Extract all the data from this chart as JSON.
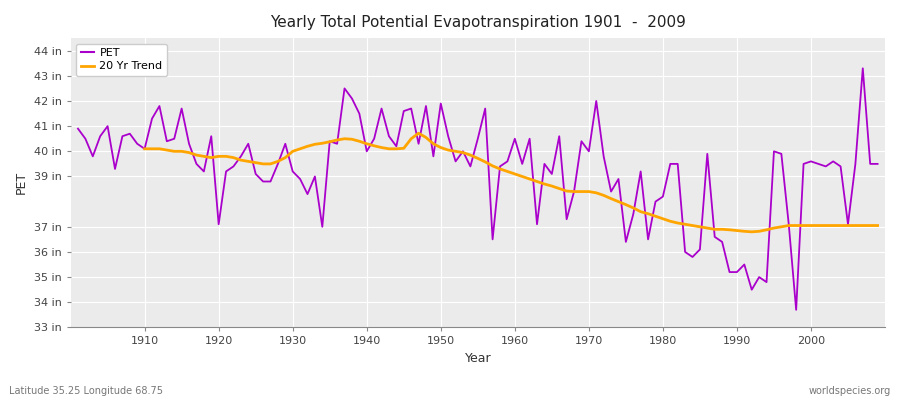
{
  "title": "Yearly Total Potential Evapotranspiration 1901  -  2009",
  "xlabel": "Year",
  "ylabel": "PET",
  "subtitle_left": "Latitude 35.25 Longitude 68.75",
  "subtitle_right": "worldspecies.org",
  "pet_color": "#AA00CC",
  "trend_color": "#FFA500",
  "bg_color": "#EBEBEB",
  "fig_bg": "#FFFFFF",
  "ylim": [
    33,
    44.5
  ],
  "xlim": [
    1900,
    2010
  ],
  "yticks": [
    33,
    34,
    35,
    36,
    37,
    39,
    40,
    41,
    42,
    43,
    44
  ],
  "ytick_labels": [
    "33 in",
    "34 in",
    "35 in",
    "36 in",
    "37 in",
    "39 in",
    "40 in",
    "41 in",
    "42 in",
    "43 in",
    "44 in"
  ],
  "xticks": [
    1910,
    1920,
    1930,
    1940,
    1950,
    1960,
    1970,
    1980,
    1990,
    2000
  ],
  "years": [
    1901,
    1902,
    1903,
    1904,
    1905,
    1906,
    1907,
    1908,
    1909,
    1910,
    1911,
    1912,
    1913,
    1914,
    1915,
    1916,
    1917,
    1918,
    1919,
    1920,
    1921,
    1922,
    1923,
    1924,
    1925,
    1926,
    1927,
    1928,
    1929,
    1930,
    1931,
    1932,
    1933,
    1934,
    1935,
    1936,
    1937,
    1938,
    1939,
    1940,
    1941,
    1942,
    1943,
    1944,
    1945,
    1946,
    1947,
    1948,
    1949,
    1950,
    1951,
    1952,
    1953,
    1954,
    1955,
    1956,
    1957,
    1958,
    1959,
    1960,
    1961,
    1962,
    1963,
    1964,
    1965,
    1966,
    1967,
    1968,
    1969,
    1970,
    1971,
    1972,
    1973,
    1974,
    1975,
    1976,
    1977,
    1978,
    1979,
    1980,
    1981,
    1982,
    1983,
    1984,
    1985,
    1986,
    1987,
    1988,
    1989,
    1990,
    1991,
    1992,
    1993,
    1994,
    1995,
    1996,
    1997,
    1998,
    1999,
    2000,
    2001,
    2002,
    2003,
    2004,
    2005,
    2006,
    2007,
    2008,
    2009
  ],
  "pet_values": [
    40.9,
    40.5,
    39.8,
    40.6,
    41.0,
    39.3,
    40.6,
    40.7,
    40.3,
    40.1,
    41.3,
    41.8,
    40.4,
    40.5,
    41.7,
    40.3,
    39.5,
    39.2,
    40.6,
    37.1,
    39.2,
    39.4,
    39.8,
    40.3,
    39.1,
    38.8,
    38.8,
    39.5,
    40.3,
    39.2,
    38.9,
    38.3,
    39.0,
    37.0,
    40.4,
    40.3,
    42.5,
    42.1,
    41.5,
    40.0,
    40.5,
    41.7,
    40.6,
    40.2,
    41.6,
    41.7,
    40.3,
    41.8,
    39.8,
    41.9,
    40.6,
    39.6,
    40.0,
    39.4,
    40.5,
    41.7,
    36.5,
    39.4,
    39.6,
    40.5,
    39.5,
    40.5,
    37.1,
    39.5,
    39.1,
    40.6,
    37.3,
    38.4,
    40.4,
    40.0,
    42.0,
    39.8,
    38.4,
    38.9,
    36.4,
    37.5,
    39.2,
    36.5,
    38.0,
    38.2,
    39.5,
    39.5,
    36.0,
    35.8,
    36.1,
    39.9,
    36.6,
    36.4,
    35.2,
    35.2,
    35.5,
    34.5,
    35.0,
    34.8,
    40.0,
    39.9,
    37.1,
    33.7,
    39.5,
    39.6,
    39.5,
    39.4,
    39.6,
    39.4,
    37.1,
    39.5,
    43.3,
    39.5,
    39.5
  ],
  "trend_start_year": 1910,
  "trend_values": [
    40.1,
    40.1,
    40.1,
    40.05,
    40.0,
    40.0,
    39.95,
    39.85,
    39.8,
    39.75,
    39.8,
    39.8,
    39.75,
    39.65,
    39.6,
    39.55,
    39.5,
    39.5,
    39.6,
    39.75,
    40.0,
    40.1,
    40.2,
    40.28,
    40.32,
    40.38,
    40.45,
    40.5,
    40.48,
    40.4,
    40.3,
    40.22,
    40.15,
    40.1,
    40.1,
    40.12,
    40.5,
    40.72,
    40.55,
    40.3,
    40.15,
    40.05,
    40.0,
    39.95,
    39.85,
    39.72,
    39.58,
    39.42,
    39.3,
    39.2,
    39.1,
    39.0,
    38.9,
    38.8,
    38.7,
    38.62,
    38.52,
    38.42,
    38.4,
    38.4,
    38.4,
    38.35,
    38.25,
    38.12,
    38.0,
    37.88,
    37.75,
    37.6,
    37.52,
    37.42,
    37.32,
    37.22,
    37.15,
    37.1,
    37.05,
    37.0,
    36.95,
    36.9,
    36.9,
    36.88,
    36.85,
    36.82,
    36.8,
    36.82,
    36.88,
    36.95,
    37.0,
    37.05,
    37.05,
    37.05,
    37.05,
    37.05,
    37.05,
    37.05,
    37.05,
    37.05,
    37.05,
    37.05,
    37.05,
    37.05
  ]
}
